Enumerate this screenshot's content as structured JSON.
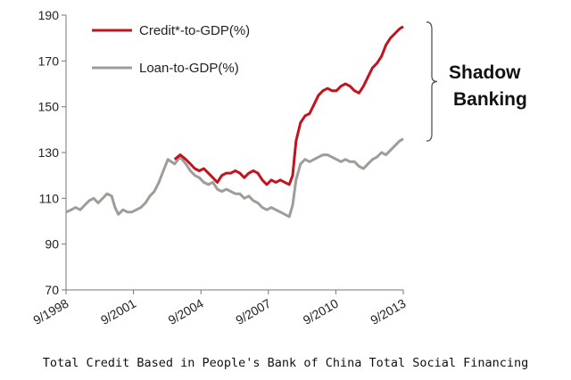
{
  "chart_data": {
    "type": "line",
    "title": "",
    "caption": "Total Credit Based in People's Bank of China Total Social Financing",
    "xlabel": "",
    "ylabel": "",
    "ylim": [
      70,
      190
    ],
    "yticks": [
      70,
      90,
      110,
      130,
      150,
      170,
      190
    ],
    "xlim": [
      1998.67,
      2013.67
    ],
    "xticks": [
      {
        "label": "9/1998",
        "x": 1998.67
      },
      {
        "label": "9/2001",
        "x": 2001.67
      },
      {
        "label": "9/2004",
        "x": 2004.67
      },
      {
        "label": "9/2007",
        "x": 2007.67
      },
      {
        "label": "9/2010",
        "x": 2010.67
      },
      {
        "label": "9/2013",
        "x": 2013.67
      }
    ],
    "grid": false,
    "legend_position": "top-left",
    "annotation": {
      "lines": [
        "Shadow",
        "Banking"
      ],
      "y_range": [
        135,
        187
      ]
    },
    "series": [
      {
        "name": "Credit*-to-GDP(%)",
        "color": "#c0141e",
        "x": [
          2003.5,
          2003.75,
          2004.0,
          2004.2,
          2004.4,
          2004.6,
          2004.8,
          2005.0,
          2005.2,
          2005.4,
          2005.6,
          2005.8,
          2006.0,
          2006.2,
          2006.4,
          2006.6,
          2006.8,
          2007.0,
          2007.2,
          2007.4,
          2007.6,
          2007.8,
          2008.0,
          2008.2,
          2008.4,
          2008.6,
          2008.75,
          2008.9,
          2009.1,
          2009.3,
          2009.5,
          2009.7,
          2009.9,
          2010.1,
          2010.3,
          2010.5,
          2010.7,
          2010.9,
          2011.1,
          2011.3,
          2011.5,
          2011.7,
          2011.9,
          2012.1,
          2012.3,
          2012.5,
          2012.7,
          2012.9,
          2013.1,
          2013.3,
          2013.5,
          2013.67
        ],
        "y": [
          127,
          129,
          127,
          125,
          123,
          122,
          123,
          121,
          119,
          117,
          120,
          121,
          121,
          122,
          121,
          119,
          121,
          122,
          121,
          118,
          116,
          118,
          117,
          118,
          117,
          116,
          120,
          135,
          143,
          146,
          147,
          151,
          155,
          157,
          158,
          157,
          157,
          159,
          160,
          159,
          157,
          156,
          159,
          163,
          167,
          169,
          172,
          177,
          180,
          182,
          184,
          185
        ]
      },
      {
        "name": "Loan-to-GDP(%)",
        "color": "#a09c98",
        "x": [
          1998.67,
          1998.9,
          1999.1,
          1999.3,
          1999.5,
          1999.7,
          1999.9,
          2000.1,
          2000.3,
          2000.5,
          2000.7,
          2000.85,
          2001.0,
          2001.2,
          2001.4,
          2001.6,
          2001.8,
          2002.0,
          2002.2,
          2002.4,
          2002.6,
          2002.8,
          2003.0,
          2003.2,
          2003.5,
          2003.75,
          2004.0,
          2004.2,
          2004.4,
          2004.6,
          2004.8,
          2005.0,
          2005.2,
          2005.4,
          2005.6,
          2005.8,
          2006.0,
          2006.2,
          2006.4,
          2006.6,
          2006.8,
          2007.0,
          2007.2,
          2007.4,
          2007.6,
          2007.8,
          2008.0,
          2008.2,
          2008.4,
          2008.6,
          2008.75,
          2008.9,
          2009.1,
          2009.3,
          2009.5,
          2009.7,
          2009.9,
          2010.1,
          2010.3,
          2010.5,
          2010.7,
          2010.9,
          2011.1,
          2011.3,
          2011.5,
          2011.7,
          2011.9,
          2012.1,
          2012.3,
          2012.5,
          2012.7,
          2012.9,
          2013.1,
          2013.3,
          2013.5,
          2013.67
        ],
        "y": [
          104,
          105,
          106,
          105,
          107,
          109,
          110,
          108,
          110,
          112,
          111,
          106,
          103,
          105,
          104,
          104,
          105,
          106,
          108,
          111,
          113,
          117,
          122,
          127,
          125,
          128,
          125,
          122,
          120,
          119,
          117,
          116,
          117,
          114,
          113,
          114,
          113,
          112,
          112,
          110,
          111,
          109,
          108,
          106,
          105,
          106,
          105,
          104,
          103,
          102,
          107,
          118,
          125,
          127,
          126,
          127,
          128,
          129,
          129,
          128,
          127,
          126,
          127,
          126,
          126,
          124,
          123,
          125,
          127,
          128,
          130,
          129,
          131,
          133,
          135,
          136
        ]
      }
    ]
  }
}
